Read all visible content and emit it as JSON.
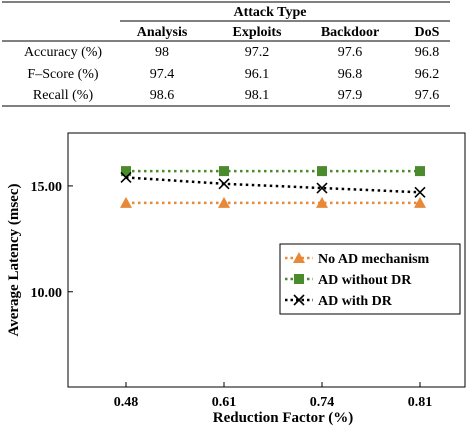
{
  "table": {
    "group_header": "Attack Type",
    "columns": [
      "Analysis",
      "Exploits",
      "Backdoor",
      "DoS"
    ],
    "rows": [
      {
        "label": "Accuracy (%)",
        "values": [
          "98",
          "97.2",
          "97.6",
          "96.8"
        ]
      },
      {
        "label": "F–Score (%)",
        "values": [
          "97.4",
          "96.1",
          "96.8",
          "96.2"
        ]
      },
      {
        "label": "Recall (%)",
        "values": [
          "98.6",
          "98.1",
          "97.9",
          "97.6"
        ]
      }
    ]
  },
  "chart_data": {
    "type": "line",
    "xlabel": "Reduction Factor (%)",
    "ylabel": "Average Latency (msec)",
    "x": [
      "0.48",
      "0.61",
      "0.74",
      "0.81"
    ],
    "ylim": [
      5.5,
      17.5
    ],
    "yticks": [
      "15.00",
      "10.00"
    ],
    "ytick_values": [
      15,
      10
    ],
    "grid": false,
    "legend_position": "right-middle",
    "series": [
      {
        "name": "No AD mechanism",
        "values": [
          14.2,
          14.2,
          14.2,
          14.2
        ],
        "color": "#e8893a",
        "marker": "triangle"
      },
      {
        "name": "AD without DR",
        "values": [
          15.7,
          15.7,
          15.7,
          15.7
        ],
        "color": "#4c8a2e",
        "marker": "square"
      },
      {
        "name": "AD with DR",
        "values": [
          15.4,
          15.1,
          14.9,
          14.7
        ],
        "color": "#000000",
        "marker": "x"
      }
    ]
  }
}
